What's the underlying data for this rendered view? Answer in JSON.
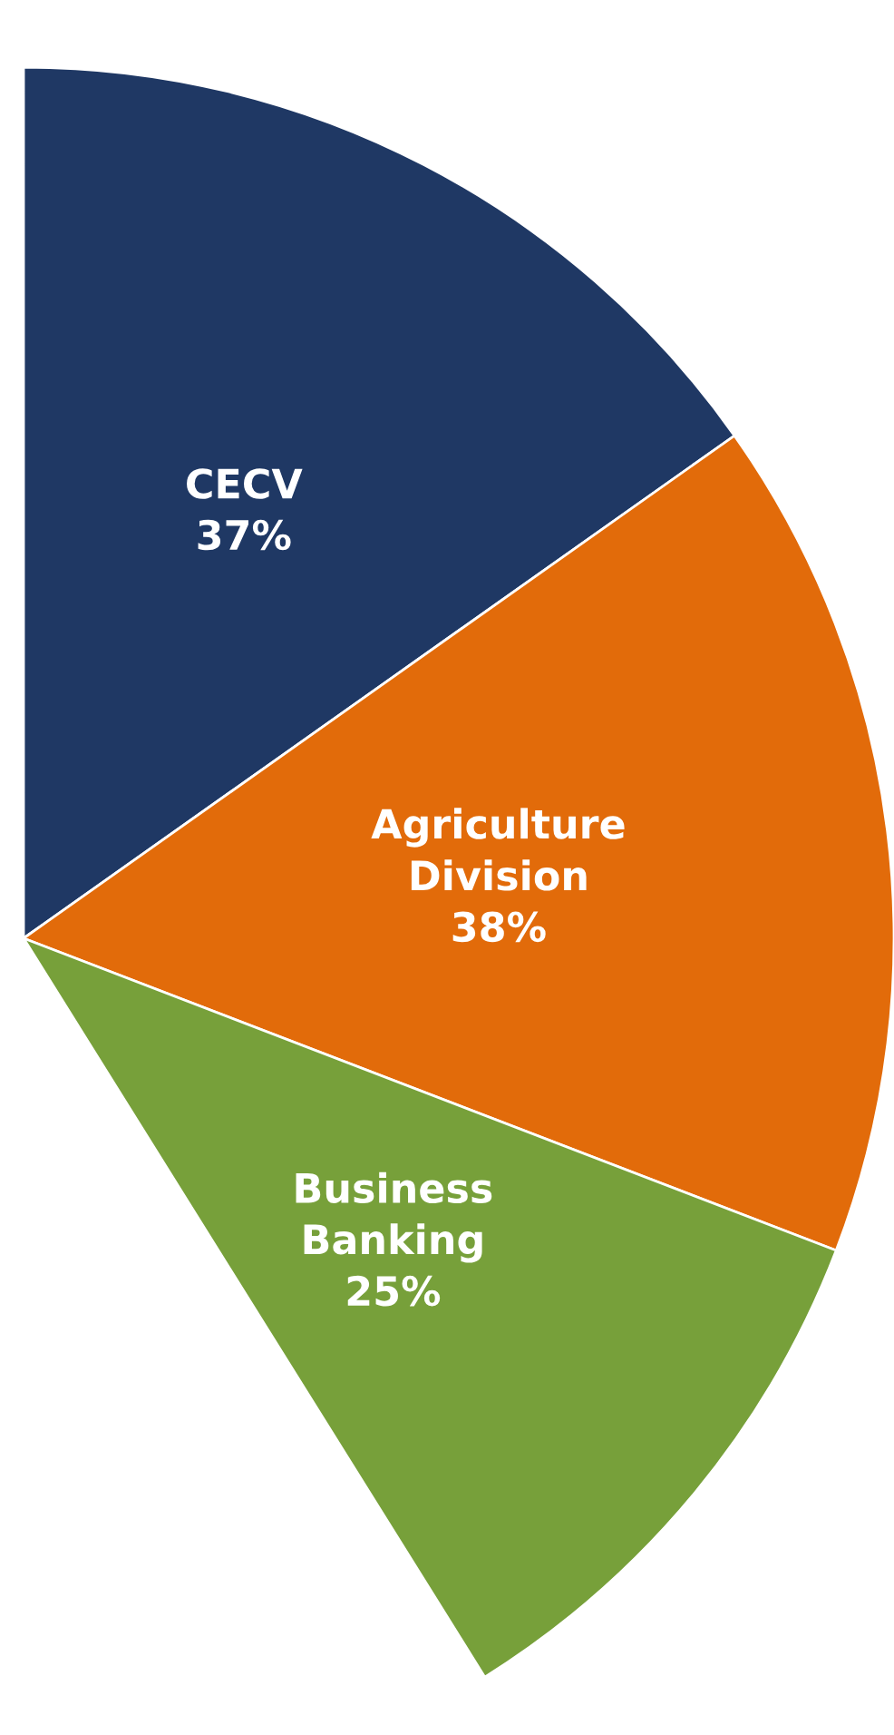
{
  "chart_data": {
    "type": "pie",
    "categories": [
      "CECV",
      "Agriculture\nDivision",
      "Business\nBanking"
    ],
    "values": [
      37,
      38,
      25
    ],
    "colors": [
      "#1f3864",
      "#e26b0a",
      "#77a03a"
    ],
    "value_labels": [
      "37%",
      "38%",
      "25%"
    ]
  }
}
